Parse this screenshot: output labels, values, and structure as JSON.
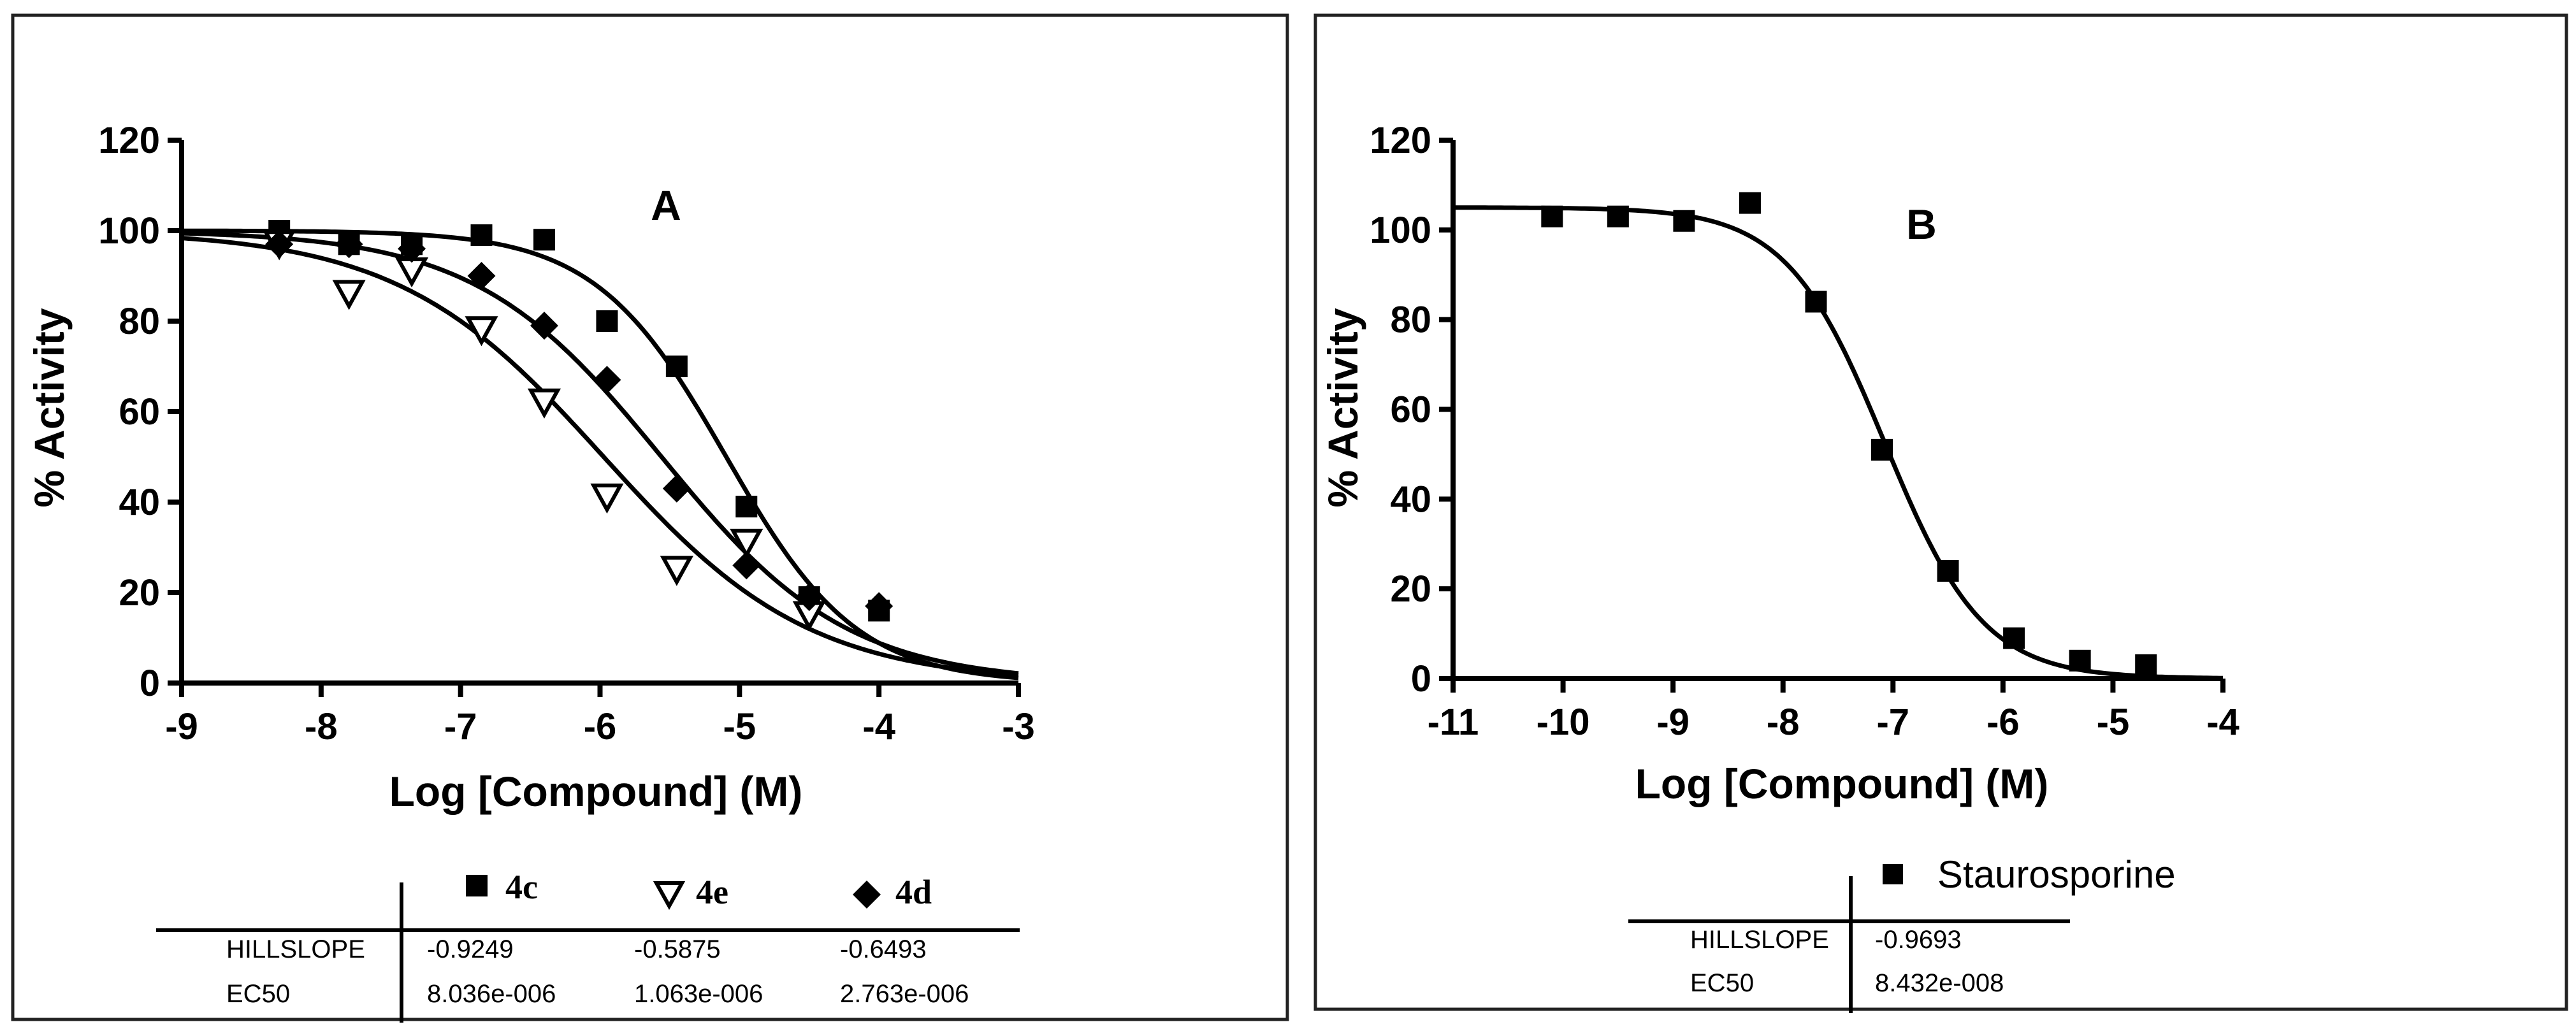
{
  "chart_data": [
    {
      "type": "scatter",
      "panel_label": "A",
      "title": "",
      "xlabel": "Log [Compound] (M)",
      "ylabel": "% Activity",
      "xlim": [
        -9,
        -3
      ],
      "ylim": [
        0,
        120
      ],
      "xticks": [
        "-9",
        "-8",
        "-7",
        "-6",
        "-5",
        "-4",
        "-3"
      ],
      "yticks": [
        "0",
        "20",
        "40",
        "60",
        "80",
        "100",
        "120"
      ],
      "series": [
        {
          "name": "4c",
          "marker": "square",
          "x": [
            -8.3,
            -7.8,
            -7.35,
            -6.85,
            -6.4,
            -5.95,
            -5.45,
            -4.95,
            -4.5,
            -4.0
          ],
          "y": [
            100,
            97,
            97,
            99,
            98,
            80,
            70,
            39,
            19,
            16
          ],
          "fit": {
            "top": 100,
            "bottom": 0,
            "logec50": -5.095,
            "hillslope": -0.9249
          }
        },
        {
          "name": "4e",
          "marker": "triangle-down-open",
          "x": [
            -8.3,
            -7.8,
            -7.35,
            -6.85,
            -6.4,
            -5.95,
            -5.45,
            -4.95,
            -4.5
          ],
          "y": [
            97,
            86,
            91,
            78,
            62,
            41,
            25,
            31,
            15
          ],
          "fit": {
            "top": 100,
            "bottom": 0,
            "logec50": -5.974,
            "hillslope": -0.5875
          }
        },
        {
          "name": "4d",
          "marker": "diamond",
          "x": [
            -8.3,
            -7.8,
            -7.35,
            -6.85,
            -6.4,
            -5.95,
            -5.45,
            -4.95,
            -4.5,
            -4.0
          ],
          "y": [
            97,
            97,
            96,
            90,
            79,
            67,
            43,
            26,
            19,
            17
          ],
          "fit": {
            "top": 100,
            "bottom": 0,
            "logec50": -5.559,
            "hillslope": -0.6493
          }
        }
      ],
      "table": {
        "headers": [
          "4c",
          "4e",
          "4d"
        ],
        "rows": [
          {
            "label": "HILLSLOPE",
            "values": [
              "-0.9249",
              "-0.5875",
              "-0.6493"
            ]
          },
          {
            "label": "EC50",
            "values": [
              "8.036e-006",
              "1.063e-006",
              "2.763e-006"
            ]
          }
        ]
      }
    },
    {
      "type": "scatter",
      "panel_label": "B",
      "title": "",
      "xlabel": "Log [Compound] (M)",
      "ylabel": "% Activity",
      "xlim": [
        -11,
        -4
      ],
      "ylim": [
        0,
        120
      ],
      "xticks": [
        "-11",
        "-10",
        "-9",
        "-8",
        "-7",
        "-6",
        "-5",
        "-4"
      ],
      "yticks": [
        "0",
        "20",
        "40",
        "60",
        "80",
        "100",
        "120"
      ],
      "series": [
        {
          "name": "Staurosporine",
          "marker": "square",
          "x": [
            -10.1,
            -9.5,
            -8.9,
            -8.3,
            -7.7,
            -7.1,
            -6.5,
            -5.9,
            -5.3,
            -4.7
          ],
          "y": [
            103,
            103,
            102,
            106,
            84,
            51,
            24,
            9,
            4,
            3
          ],
          "fit": {
            "top": 105,
            "bottom": 0,
            "logec50": -7.074,
            "hillslope": -0.9693
          }
        }
      ],
      "table": {
        "headers": [
          "Staurosporine"
        ],
        "rows": [
          {
            "label": "HILLSLOPE",
            "values": [
              "-0.9693"
            ]
          },
          {
            "label": "EC50",
            "values": [
              "8.432e-008"
            ]
          }
        ]
      }
    }
  ]
}
